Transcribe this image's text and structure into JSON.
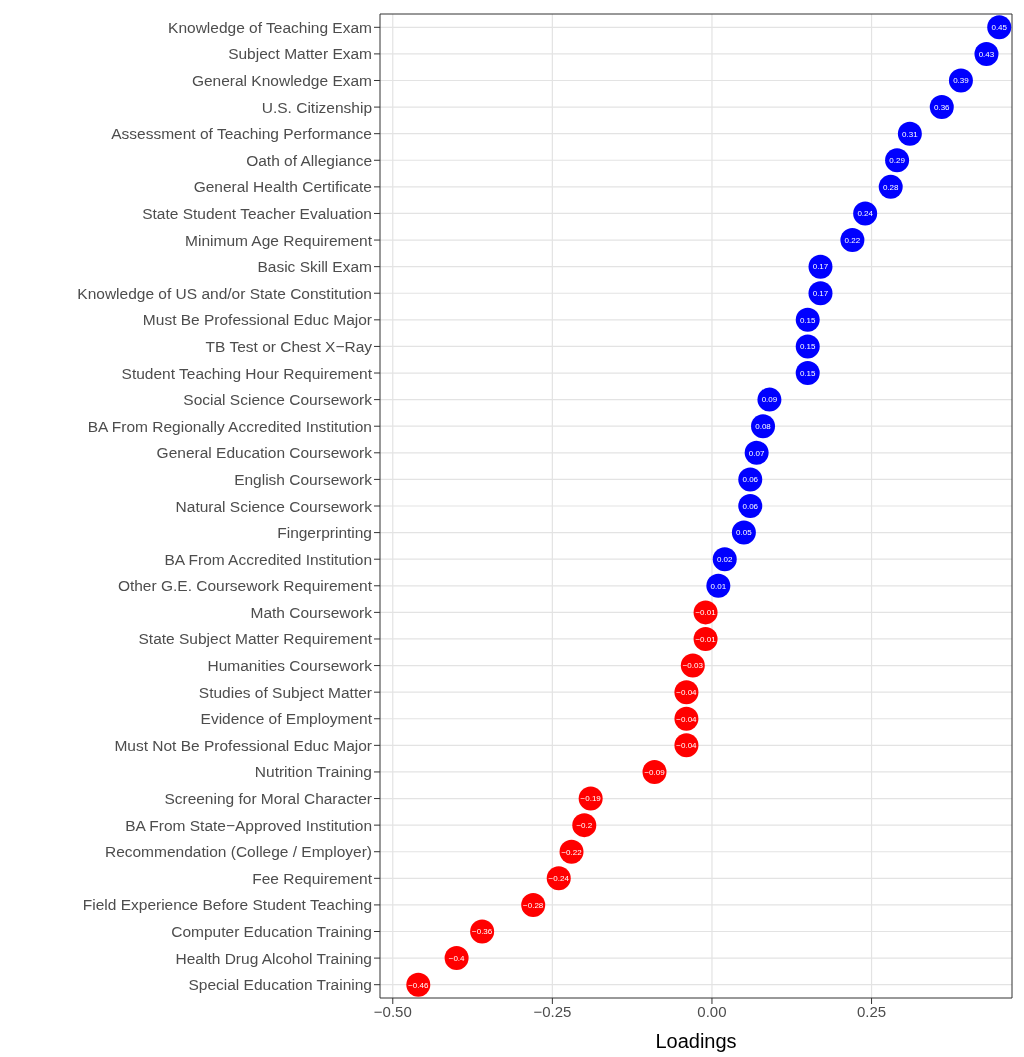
{
  "chart_data": {
    "type": "scatter",
    "orientation": "horizontal",
    "xlabel": "Loadings",
    "categories": [
      "Knowledge of Teaching Exam",
      "Subject Matter Exam",
      "General Knowledge Exam",
      "U.S. Citizenship",
      "Assessment of Teaching Performance",
      "Oath of Allegiance",
      "General Health Certificate",
      "State Student Teacher Evaluation",
      "Minimum Age Requirement",
      "Basic Skill Exam",
      "Knowledge of US and/or State Constitution",
      "Must Be Professional Educ Major",
      "TB Test or Chest X−Ray",
      "Student Teaching Hour Requirement",
      "Social Science Coursework",
      "BA From Regionally Accredited  Institution",
      "General Education Coursework",
      "English Coursework",
      "Natural Science Coursework",
      "Fingerprinting",
      "BA From Accredited Institution",
      "Other G.E. Coursework Requirement",
      "Math Coursework",
      "State Subject Matter Requirement",
      "Humanities Coursework",
      "Studies of Subject Matter",
      "Evidence of Employment",
      "Must Not Be Professional Educ Major",
      "Nutrition Training",
      "Screening for Moral Character",
      "BA From State−Approved Institution",
      "Recommendation (College / Employer)",
      "Fee Requirement",
      "Field Experience Before Student Teaching",
      "Computer Education Training",
      "Health Drug Alcohol Training",
      "Special Education Training"
    ],
    "values": [
      0.45,
      0.43,
      0.39,
      0.36,
      0.31,
      0.29,
      0.28,
      0.24,
      0.22,
      0.17,
      0.17,
      0.15,
      0.15,
      0.15,
      0.09,
      0.08,
      0.07,
      0.06,
      0.06,
      0.05,
      0.02,
      0.01,
      -0.01,
      -0.01,
      -0.03,
      -0.04,
      -0.04,
      -0.04,
      -0.09,
      -0.19,
      -0.2,
      -0.22,
      -0.24,
      -0.28,
      -0.36,
      -0.4,
      -0.46
    ],
    "colors": [
      "#0000ff",
      "#0000ff",
      "#0000ff",
      "#0000ff",
      "#0000ff",
      "#0000ff",
      "#0000ff",
      "#0000ff",
      "#0000ff",
      "#0000ff",
      "#0000ff",
      "#0000ff",
      "#0000ff",
      "#0000ff",
      "#0000ff",
      "#0000ff",
      "#0000ff",
      "#0000ff",
      "#0000ff",
      "#0000ff",
      "#0000ff",
      "#0000ff",
      "#ff0000",
      "#ff0000",
      "#ff0000",
      "#ff0000",
      "#ff0000",
      "#ff0000",
      "#ff0000",
      "#ff0000",
      "#ff0000",
      "#ff0000",
      "#ff0000",
      "#ff0000",
      "#ff0000",
      "#ff0000",
      "#ff0000"
    ],
    "data_labels": true,
    "marker": "circle",
    "xlim": [
      -0.52,
      0.47
    ],
    "xticks": [
      {
        "value": -0.5,
        "label": "−0.50"
      },
      {
        "value": -0.25,
        "label": "−0.25"
      },
      {
        "value": 0,
        "label": "0.00"
      },
      {
        "value": 0.25,
        "label": "0.25"
      }
    ],
    "grid": true
  }
}
